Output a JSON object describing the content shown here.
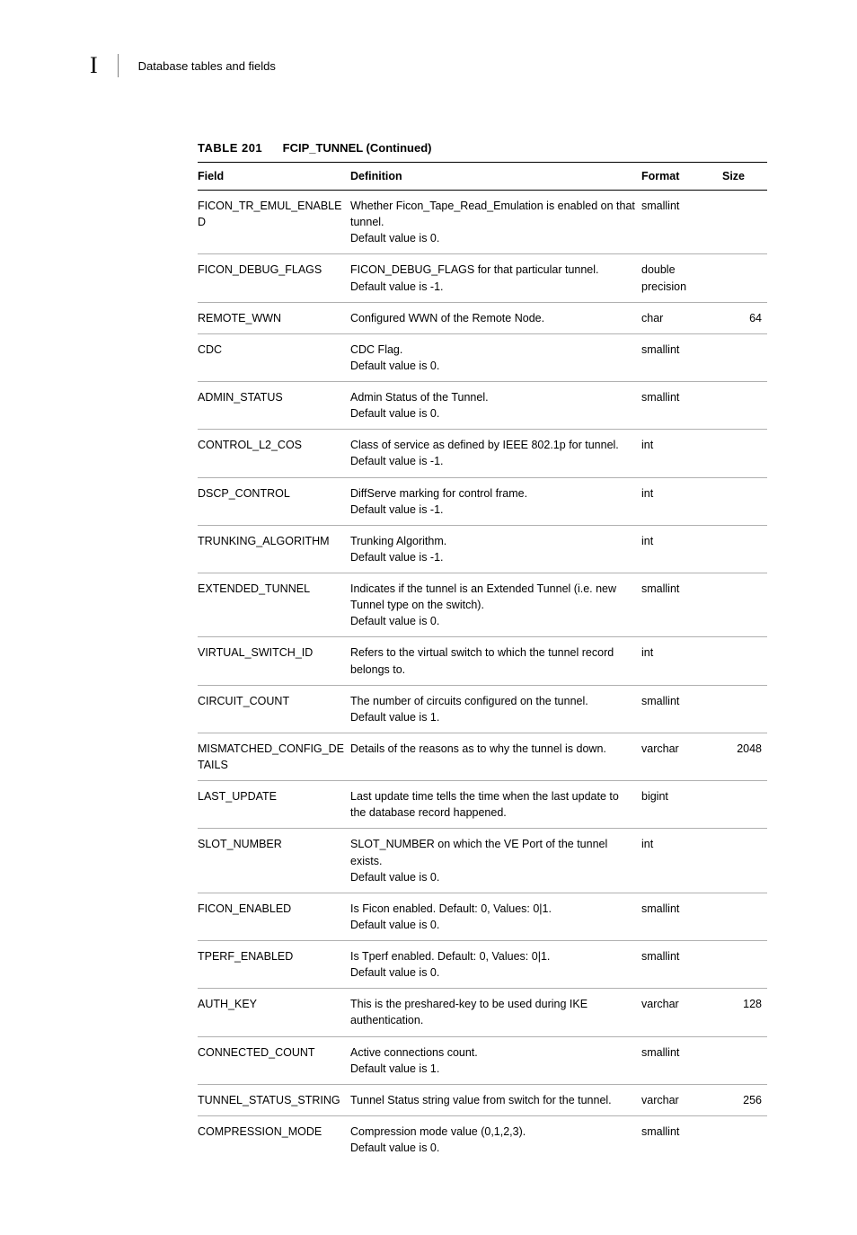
{
  "header": {
    "chapter_letter": "I",
    "title": "Database tables and fields"
  },
  "table": {
    "caption_label": "TABLE 201",
    "caption_name": "FCIP_TUNNEL (Continued)",
    "columns": [
      "Field",
      "Definition",
      "Format",
      "Size"
    ],
    "rows": [
      {
        "field": "FICON_TR_EMUL_ENABLED",
        "definition": "Whether Ficon_Tape_Read_Emulation is enabled on that tunnel.\nDefault value is 0.",
        "format": "smallint",
        "size": ""
      },
      {
        "field": "FICON_DEBUG_FLAGS",
        "definition": "FICON_DEBUG_FLAGS for that particular tunnel.\nDefault value is -1.",
        "format": "double precision",
        "size": ""
      },
      {
        "field": "REMOTE_WWN",
        "definition": "Configured WWN of the Remote Node.",
        "format": "char",
        "size": "64"
      },
      {
        "field": "CDC",
        "definition": "CDC Flag.\nDefault value is 0.",
        "format": "smallint",
        "size": ""
      },
      {
        "field": "ADMIN_STATUS",
        "definition": "Admin Status of the Tunnel.\nDefault value is 0.",
        "format": "smallint",
        "size": ""
      },
      {
        "field": "CONTROL_L2_COS",
        "definition": "Class of service as defined by IEEE 802.1p for tunnel.\nDefault value is -1.",
        "format": "int",
        "size": ""
      },
      {
        "field": "DSCP_CONTROL",
        "definition": "DiffServe marking for control frame.\nDefault value is -1.",
        "format": "int",
        "size": ""
      },
      {
        "field": "TRUNKING_ALGORITHM",
        "definition": "Trunking Algorithm.\nDefault value is -1.",
        "format": "int",
        "size": ""
      },
      {
        "field": "EXTENDED_TUNNEL",
        "definition": "Indicates if the tunnel is an Extended Tunnel (i.e. new Tunnel type on the switch).\nDefault value is 0.",
        "format": "smallint",
        "size": ""
      },
      {
        "field": "VIRTUAL_SWITCH_ID",
        "definition": "Refers to the virtual switch to which the tunnel record belongs to.",
        "format": "int",
        "size": ""
      },
      {
        "field": "CIRCUIT_COUNT",
        "definition": "The number of circuits configured on the tunnel.\nDefault value is 1.",
        "format": "smallint",
        "size": ""
      },
      {
        "field": "MISMATCHED_CONFIG_DETAILS",
        "definition": "Details of the reasons as to why the tunnel is down.",
        "format": "varchar",
        "size": "2048"
      },
      {
        "field": "LAST_UPDATE",
        "definition": "Last update time tells the time when the last update to the database record happened.",
        "format": "bigint",
        "size": ""
      },
      {
        "field": "SLOT_NUMBER",
        "definition": "SLOT_NUMBER on which the VE Port of the tunnel exists.\nDefault value is 0.",
        "format": "int",
        "size": ""
      },
      {
        "field": "FICON_ENABLED",
        "definition": "Is Ficon enabled. Default: 0, Values: 0|1.\nDefault value is 0.",
        "format": "smallint",
        "size": ""
      },
      {
        "field": "TPERF_ENABLED",
        "definition": "Is Tperf enabled. Default: 0, Values: 0|1.\nDefault value is 0.",
        "format": "smallint",
        "size": ""
      },
      {
        "field": "AUTH_KEY",
        "definition": "This is the preshared-key to be used during IKE authentication.",
        "format": "varchar",
        "size": "128"
      },
      {
        "field": "CONNECTED_COUNT",
        "definition": "Active connections count.\nDefault value is 1.",
        "format": "smallint",
        "size": ""
      },
      {
        "field": "TUNNEL_STATUS_STRING",
        "definition": "Tunnel Status string value from switch for the tunnel.",
        "format": "varchar",
        "size": "256"
      },
      {
        "field": "COMPRESSION_MODE",
        "definition": "Compression mode value (0,1,2,3).\nDefault value is 0.",
        "format": "smallint",
        "size": ""
      }
    ]
  }
}
